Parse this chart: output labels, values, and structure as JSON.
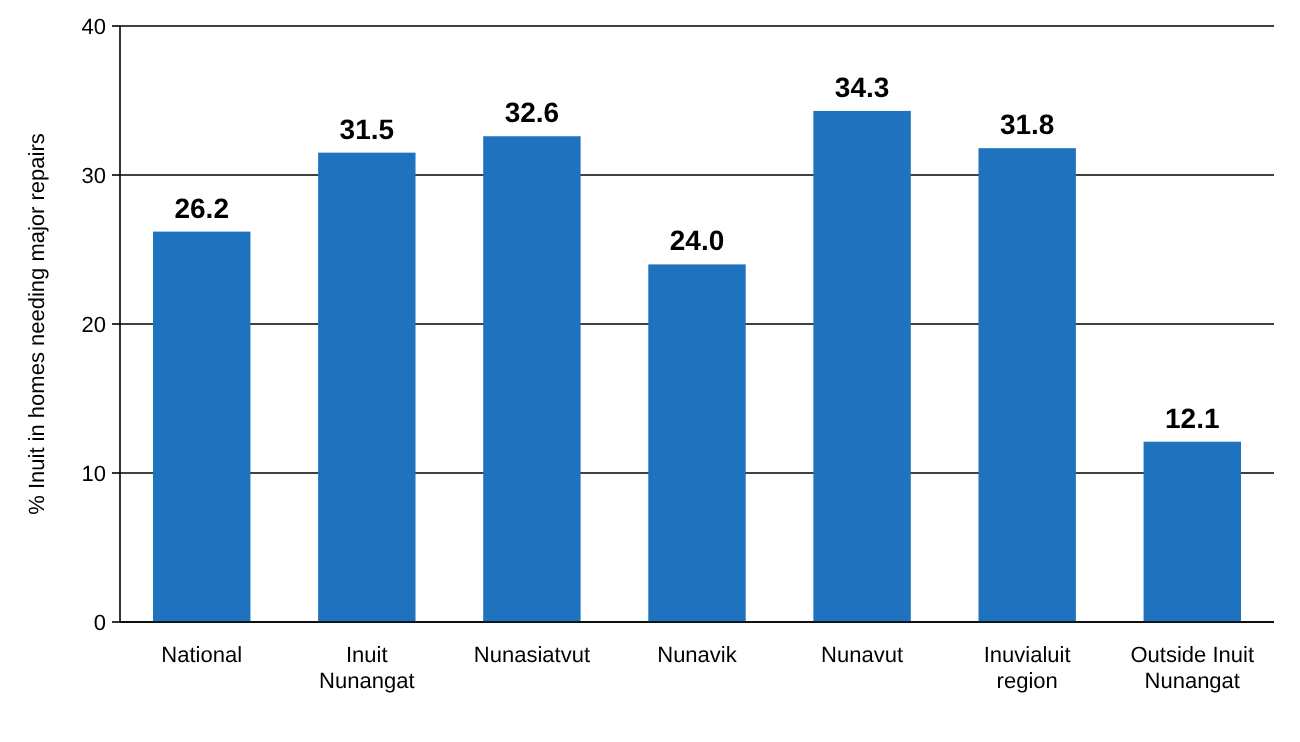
{
  "chart_data": {
    "type": "bar",
    "ylabel": "% Inuit in homes needing major repairs",
    "categories": [
      "National",
      "Inuit Nunangat",
      "Nunasiatvut",
      "Nunavik",
      "Nunavut",
      "Inuvialuit region",
      "Outside Inuit Nunangat"
    ],
    "values": [
      26.2,
      31.5,
      32.6,
      24.0,
      34.3,
      31.8,
      12.1
    ],
    "value_labels": [
      "26.2",
      "31.5",
      "32.6",
      "24.0",
      "34.3",
      "31.8",
      "12.1"
    ],
    "color": "#1f72be",
    "ylim": [
      0,
      40
    ],
    "yticks": [
      0,
      10,
      20,
      30,
      40
    ],
    "grid": "y"
  }
}
